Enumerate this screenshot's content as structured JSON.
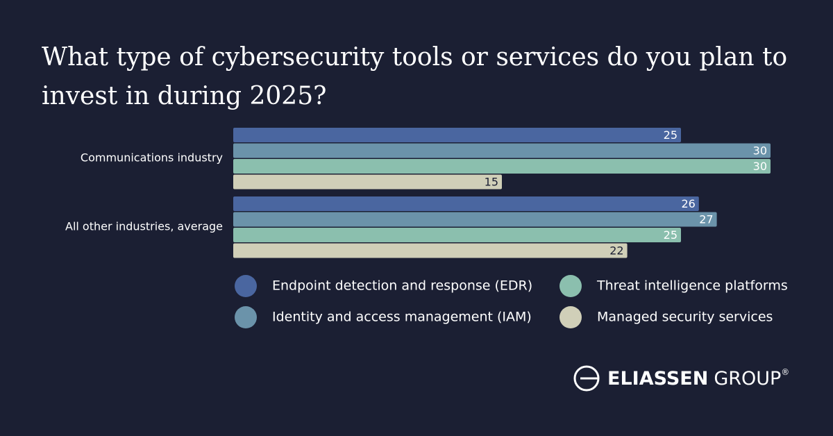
{
  "chart_data": {
    "type": "bar",
    "orientation": "horizontal",
    "title": "What type of cybersecurity tools or services do you plan to invest in during 2025?",
    "categories": [
      "Communications industry",
      "All other industries, average"
    ],
    "series": [
      {
        "name": "Endpoint detection and response (EDR)",
        "color": "#4a66a0",
        "values": [
          25,
          26
        ]
      },
      {
        "name": "Identity and access management (IAM)",
        "color": "#6b93aa",
        "values": [
          30,
          27
        ]
      },
      {
        "name": "Threat intelligence platforms",
        "color": "#8bbfae",
        "values": [
          30,
          25
        ]
      },
      {
        "name": "Managed security services",
        "color": "#d0cfb8",
        "values": [
          15,
          22
        ]
      }
    ]
  },
  "logo": {
    "name": "ELIASSEN",
    "suffix": "GROUP",
    "mark": "®"
  }
}
